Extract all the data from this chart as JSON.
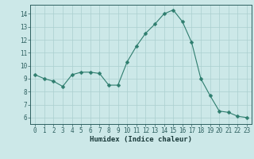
{
  "x": [
    0,
    1,
    2,
    3,
    4,
    5,
    6,
    7,
    8,
    9,
    10,
    11,
    12,
    13,
    14,
    15,
    16,
    17,
    18,
    19,
    20,
    21,
    22,
    23
  ],
  "y": [
    9.3,
    9.0,
    8.8,
    8.4,
    9.3,
    9.5,
    9.5,
    9.4,
    8.5,
    8.5,
    10.3,
    11.5,
    12.5,
    13.2,
    14.0,
    14.3,
    13.4,
    11.8,
    9.0,
    7.7,
    6.5,
    6.4,
    6.1,
    6.0
  ],
  "line_color": "#2e7d6e",
  "marker": "D",
  "marker_size": 2.5,
  "bg_color": "#cce8e8",
  "grid_color": "#aacfcf",
  "xlabel": "Humidex (Indice chaleur)",
  "xlim": [
    -0.5,
    23.5
  ],
  "ylim": [
    5.5,
    14.7
  ],
  "yticks": [
    6,
    7,
    8,
    9,
    10,
    11,
    12,
    13,
    14
  ],
  "xticks": [
    0,
    1,
    2,
    3,
    4,
    5,
    6,
    7,
    8,
    9,
    10,
    11,
    12,
    13,
    14,
    15,
    16,
    17,
    18,
    19,
    20,
    21,
    22,
    23
  ],
  "tick_fontsize": 5.5,
  "label_fontsize": 6.5
}
